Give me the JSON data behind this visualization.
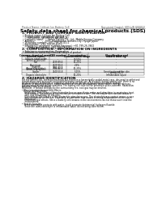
{
  "bg_color": "#ffffff",
  "header_left": "Product Name: Lithium Ion Battery Cell",
  "header_right_line1": "Document Control: SDS-LIB-000010",
  "header_right_line2": "Established / Revision: Dec.7,2016",
  "title": "Safety data sheet for chemical products (SDS)",
  "section1_title": "1. PRODUCT AND COMPANY IDENTIFICATION",
  "section1_lines": [
    "• Product name: Lithium Ion Battery Cell",
    "• Product code: Cylindrical-type cell",
    "       (UR18650J, UR18650S, UR18650A)",
    "• Company name:      Sanyo Electric Co., Ltd., Mobile Energy Company",
    "• Address:              2001, Kamikosaka, Sumoto-City, Hyogo, Japan",
    "• Telephone number:  +81-799-26-4111",
    "• Fax number:  +81-799-26-4121",
    "• Emergency telephone number (daytime): +81-799-26-3862",
    "       (Night and holiday): +81-799-26-4101"
  ],
  "section2_title": "2. COMPOSITION / INFORMATION ON INGREDIENTS",
  "section2_intro": "• Substance or preparation: Preparation",
  "section2_sub": "• Information about the chemical nature of product:",
  "table_col_headers": [
    "Common chemical name /\nGeneral name",
    "CAS number",
    "Concentration /\nConcentration range",
    "Classification and\nhazard labeling"
  ],
  "table_rows": [
    [
      "Lithium cobalt oxide\n(LiMn/CoO2(LiOx))",
      "-",
      "30-50%",
      "-"
    ],
    [
      "Iron",
      "7439-89-6",
      "15-25%",
      "-"
    ],
    [
      "Aluminium",
      "7429-90-5",
      "2-6%",
      "-"
    ],
    [
      "Graphite\n(Natural graphite)\n(Artificial graphite)",
      "7782-42-5\n7782-42-5",
      "10-25%",
      "-"
    ],
    [
      "Copper",
      "7440-50-8",
      "5-15%",
      "Sensitization of the skin\ngroup R43.2"
    ],
    [
      "Organic electrolyte",
      "-",
      "10-20%",
      "Inflammable liquid"
    ]
  ],
  "section3_title": "3. HAZARDS IDENTIFICATION",
  "section3_text": [
    "For the battery cell, chemical materials are stored in a hermetically sealed metal case, designed to withstand",
    "temperatures and pressures encountered during normal use. As a result, during normal use, there is no",
    "physical danger of ignition or explosion and thus no danger of hazardous materials leakage.",
    "However, if exposed to a fire, added mechanical shocks, decomposed, when electric energy releases,",
    "the gas release vent will be operated. The battery cell case will be breached at fire-extreme. Hazardous",
    "materials may be released.",
    "Moreover, if heated strongly by the surrounding fire, soot gas may be emitted.",
    "",
    "• Most important hazard and effects:",
    "  Human health effects:",
    "    Inhalation: The release of the electrolyte has an anesthesia action and stimulates in respiratory tract.",
    "    Skin contact: The release of the electrolyte stimulates a skin. The electrolyte skin contact causes a",
    "    sore and stimulation on the skin.",
    "    Eye contact: The release of the electrolyte stimulates eyes. The electrolyte eye contact causes a sore",
    "    and stimulation on the eye. Especially, a substance that causes a strong inflammation of the eye is",
    "    contained.",
    "    Environmental effects: Since a battery cell remains in the environment, do not throw out it into the",
    "    environment.",
    "",
    "• Specific hazards:",
    "    If the electrolyte contacts with water, it will generate detrimental hydrogen fluoride.",
    "    Since the used-electrolyte is inflammable liquid, do not bring close to fire."
  ]
}
